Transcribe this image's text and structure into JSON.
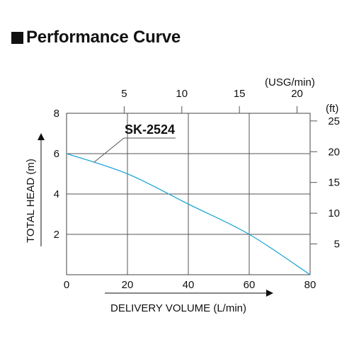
{
  "page_title": "Performance Curve",
  "chart_data": {
    "type": "line",
    "series": [
      {
        "name": "SK-2524",
        "color": "#1ea7d6",
        "points": [
          [
            0,
            6.0
          ],
          [
            20,
            5.0
          ],
          [
            40,
            3.5
          ],
          [
            60,
            2.0
          ],
          [
            80,
            0.0
          ]
        ]
      }
    ],
    "xlim": [
      0,
      80
    ],
    "ylim": [
      0,
      8
    ],
    "x_ticks": [
      "0",
      "20",
      "40",
      "60",
      "80"
    ],
    "y_ticks": [
      "2",
      "4",
      "6",
      "8"
    ],
    "xlabel": "DELIVERY VOLUME (L/min)",
    "ylabel": "TOTAL HEAD (m)",
    "secondary_x": {
      "unit_label": "(USG/min)",
      "ticks": [
        "5",
        "10",
        "15",
        "20"
      ]
    },
    "secondary_y": {
      "unit_label": "(ft)",
      "ticks": [
        "5",
        "10",
        "15",
        "20",
        "25"
      ]
    },
    "grid": true,
    "curve_color": "#1ea7d6",
    "label_color": "#1ea7d6"
  }
}
